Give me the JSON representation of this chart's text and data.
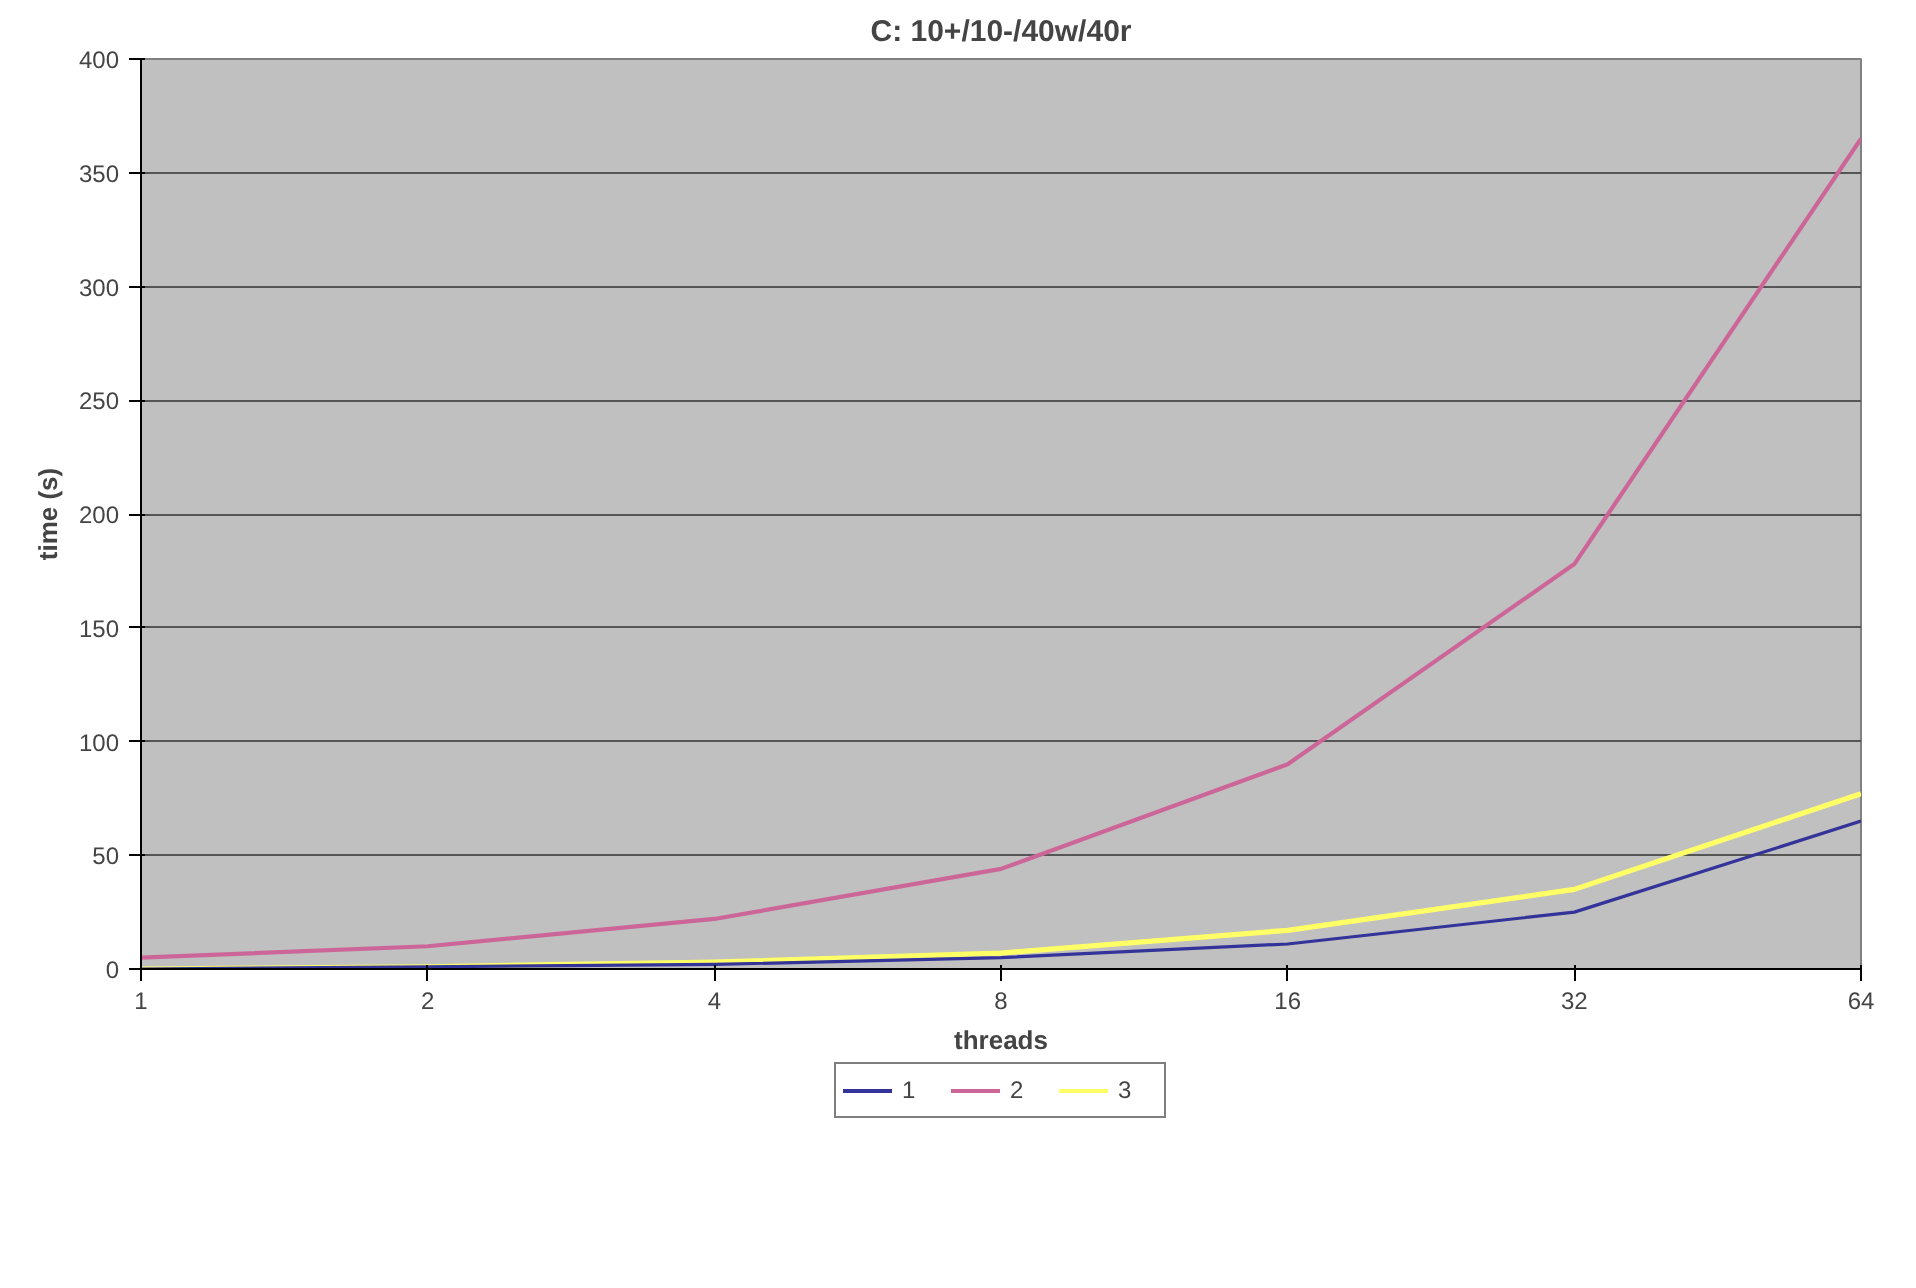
{
  "chart_data": {
    "type": "line",
    "title": "C: 10+/10-/40w/40r",
    "xlabel": "threads",
    "ylabel": "time (s)",
    "categories": [
      "1",
      "2",
      "4",
      "8",
      "16",
      "32",
      "64"
    ],
    "series": [
      {
        "name": "1",
        "color": "#333399",
        "values": [
          0,
          1,
          2,
          5,
          11,
          25,
          65
        ]
      },
      {
        "name": "2",
        "color": "#cc6699",
        "values": [
          5,
          10,
          22,
          44,
          90,
          178,
          365
        ]
      },
      {
        "name": "3",
        "color": "#ffff66",
        "values": [
          0,
          1,
          3,
          7,
          17,
          35,
          77
        ]
      }
    ],
    "ylim": [
      0,
      400
    ],
    "yticks": [
      0,
      50,
      100,
      150,
      200,
      250,
      300,
      350,
      400
    ],
    "grid": "y",
    "legend": "bottom",
    "marker": "none",
    "line_style": "solid"
  }
}
